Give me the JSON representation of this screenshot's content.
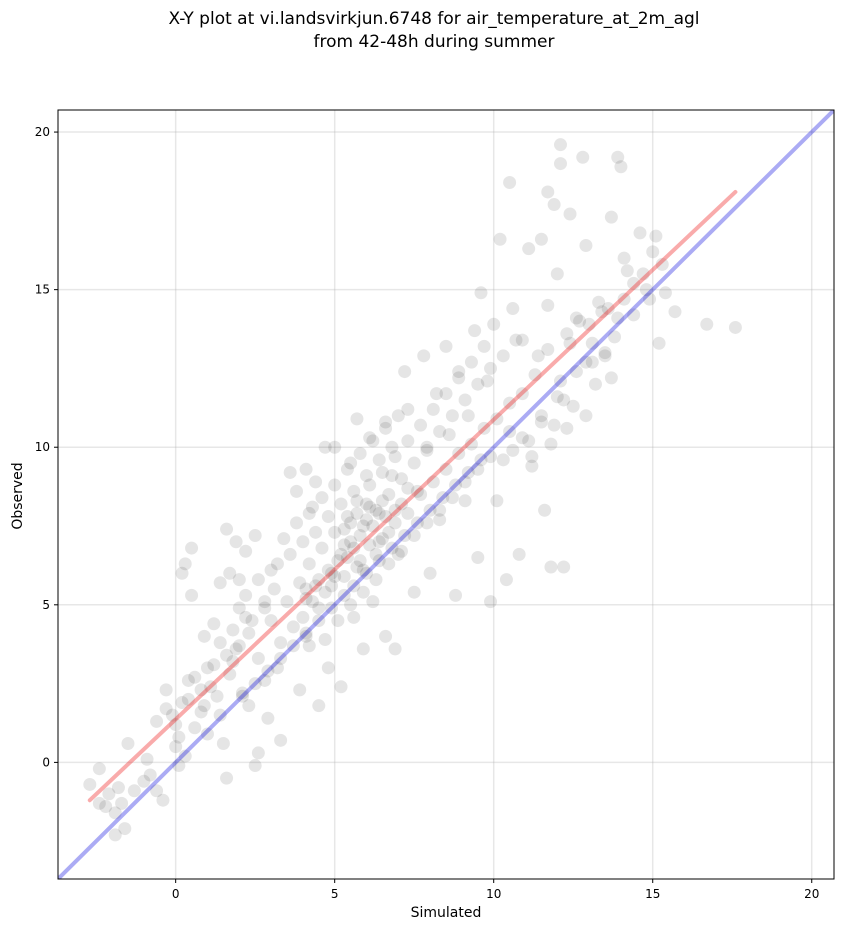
{
  "chart_data": {
    "type": "scatter",
    "title_line1": "X-Y plot at vi.landsvirkjun.6748 for air_temperature_at_2m_agl",
    "title_line2": "from 42-48h during summer",
    "xlabel": "Simulated",
    "ylabel": "Observed",
    "xlim": [
      -3.7,
      20.7
    ],
    "ylim": [
      -3.7,
      20.7
    ],
    "xticks": [
      0,
      5,
      10,
      15,
      20
    ],
    "yticks": [
      0,
      5,
      10,
      15,
      20
    ],
    "grid": true,
    "point_color": "#000000",
    "point_opacity": 0.1,
    "lines": [
      {
        "role": "one-to-one",
        "color": "#0000dd",
        "opacity": 0.33,
        "x": [
          -3.7,
          20.7
        ],
        "y": [
          -3.7,
          20.7
        ]
      },
      {
        "role": "regression",
        "color": "#ee2222",
        "opacity": 0.38,
        "x": [
          -2.7,
          17.6
        ],
        "y": [
          -1.2,
          18.1
        ]
      }
    ],
    "points": [
      [
        -2.7,
        -0.7
      ],
      [
        -2.4,
        -0.2
      ],
      [
        -2.2,
        -1.4
      ],
      [
        -1.9,
        -1.6
      ],
      [
        -1.9,
        -2.3
      ],
      [
        -1.7,
        -1.3
      ],
      [
        -1.6,
        -2.1
      ],
      [
        -1.5,
        0.6
      ],
      [
        -1.3,
        -0.9
      ],
      [
        -1.0,
        -0.6
      ],
      [
        -0.9,
        0.1
      ],
      [
        -0.6,
        -0.9
      ],
      [
        -0.6,
        1.3
      ],
      [
        -0.4,
        -1.2
      ],
      [
        -0.3,
        2.3
      ],
      [
        -0.3,
        1.7
      ],
      [
        -0.1,
        1.5
      ],
      [
        0.1,
        0.8
      ],
      [
        0.1,
        -0.1
      ],
      [
        0.2,
        6.0
      ],
      [
        0.3,
        6.3
      ],
      [
        0.4,
        2.6
      ],
      [
        0.5,
        6.8
      ],
      [
        0.5,
        5.3
      ],
      [
        0.8,
        1.6
      ],
      [
        0.9,
        4.0
      ],
      [
        1.0,
        0.9
      ],
      [
        1.2,
        4.4
      ],
      [
        1.3,
        2.1
      ],
      [
        1.4,
        5.7
      ],
      [
        1.5,
        0.6
      ],
      [
        1.6,
        -0.5
      ],
      [
        1.6,
        7.4
      ],
      [
        1.7,
        6.0
      ],
      [
        1.8,
        3.2
      ],
      [
        1.9,
        7.0
      ],
      [
        2.0,
        5.8
      ],
      [
        2.2,
        6.7
      ],
      [
        2.3,
        1.8
      ],
      [
        2.5,
        -0.1
      ],
      [
        2.5,
        7.2
      ],
      [
        2.6,
        0.3
      ],
      [
        2.8,
        4.9
      ],
      [
        2.9,
        1.4
      ],
      [
        3.1,
        5.5
      ],
      [
        3.2,
        3.0
      ],
      [
        3.3,
        0.7
      ],
      [
        3.6,
        9.2
      ],
      [
        3.8,
        8.6
      ],
      [
        3.9,
        2.3
      ],
      [
        4.1,
        9.3
      ],
      [
        4.1,
        4.0
      ],
      [
        4.3,
        8.1
      ],
      [
        4.4,
        8.9
      ],
      [
        4.5,
        1.8
      ],
      [
        4.7,
        10.0
      ],
      [
        4.8,
        3.0
      ],
      [
        5.0,
        10.0
      ],
      [
        5.0,
        5.9
      ],
      [
        5.2,
        2.4
      ],
      [
        5.3,
        7.4
      ],
      [
        5.5,
        9.5
      ],
      [
        5.6,
        4.6
      ],
      [
        5.7,
        10.9
      ],
      [
        5.8,
        6.4
      ],
      [
        5.9,
        3.6
      ],
      [
        6.0,
        8.2
      ],
      [
        6.1,
        10.3
      ],
      [
        6.2,
        5.1
      ],
      [
        6.4,
        7.9
      ],
      [
        6.6,
        10.8
      ],
      [
        6.6,
        4.0
      ],
      [
        6.8,
        9.1
      ],
      [
        6.9,
        3.6
      ],
      [
        7.0,
        6.6
      ],
      [
        7.2,
        12.4
      ],
      [
        7.3,
        11.2
      ],
      [
        7.5,
        5.4
      ],
      [
        7.6,
        8.6
      ],
      [
        7.8,
        12.9
      ],
      [
        7.9,
        9.9
      ],
      [
        8.0,
        6.0
      ],
      [
        8.2,
        11.7
      ],
      [
        8.3,
        7.7
      ],
      [
        8.5,
        13.2
      ],
      [
        8.6,
        10.4
      ],
      [
        8.8,
        5.3
      ],
      [
        8.9,
        12.4
      ],
      [
        9.1,
        8.3
      ],
      [
        9.2,
        11.0
      ],
      [
        9.4,
        13.7
      ],
      [
        9.5,
        6.5
      ],
      [
        9.6,
        14.9
      ],
      [
        9.8,
        12.1
      ],
      [
        9.9,
        5.1
      ],
      [
        10.0,
        13.9
      ],
      [
        10.1,
        8.3
      ],
      [
        10.2,
        16.6
      ],
      [
        10.4,
        5.8
      ],
      [
        10.5,
        11.4
      ],
      [
        10.6,
        14.4
      ],
      [
        10.8,
        6.6
      ],
      [
        10.9,
        13.4
      ],
      [
        11.1,
        16.3
      ],
      [
        11.2,
        9.7
      ],
      [
        11.4,
        12.9
      ],
      [
        11.5,
        16.6
      ],
      [
        11.6,
        8.0
      ],
      [
        11.7,
        14.5
      ],
      [
        11.7,
        18.1
      ],
      [
        11.8,
        6.2
      ],
      [
        11.9,
        17.7
      ],
      [
        12.0,
        15.5
      ],
      [
        12.2,
        6.2
      ],
      [
        12.2,
        11.5
      ],
      [
        12.4,
        17.4
      ],
      [
        12.6,
        14.1
      ],
      [
        12.8,
        19.2
      ],
      [
        12.9,
        16.4
      ],
      [
        13.1,
        12.7
      ],
      [
        13.4,
        14.3
      ],
      [
        13.7,
        17.3
      ],
      [
        13.9,
        19.2
      ],
      [
        14.0,
        18.9
      ],
      [
        14.1,
        16.0
      ],
      [
        14.4,
        15.2
      ],
      [
        14.6,
        16.8
      ],
      [
        14.9,
        14.7
      ],
      [
        15.2,
        13.3
      ],
      [
        15.4,
        14.9
      ],
      [
        15.7,
        14.3
      ],
      [
        16.7,
        13.9
      ],
      [
        17.6,
        13.8
      ],
      [
        12.1,
        19.6
      ],
      [
        12.1,
        19.0
      ],
      [
        10.5,
        18.4
      ],
      [
        -2.4,
        -1.3
      ],
      [
        -2.1,
        -1.0
      ],
      [
        -1.8,
        -0.8
      ],
      [
        -0.8,
        -0.4
      ],
      [
        0.0,
        0.5
      ],
      [
        0.3,
        0.2
      ],
      [
        0.6,
        1.1
      ],
      [
        0.9,
        1.8
      ],
      [
        1.1,
        2.4
      ],
      [
        1.4,
        1.5
      ],
      [
        1.7,
        2.8
      ],
      [
        1.9,
        3.6
      ],
      [
        2.1,
        2.2
      ],
      [
        2.3,
        4.1
      ],
      [
        2.6,
        3.3
      ],
      [
        2.8,
        2.6
      ],
      [
        3.0,
        4.5
      ],
      [
        3.3,
        3.8
      ],
      [
        3.5,
        5.1
      ],
      [
        3.7,
        4.3
      ],
      [
        3.9,
        5.7
      ],
      [
        4.1,
        5.2
      ],
      [
        4.2,
        6.3
      ],
      [
        4.4,
        5.6
      ],
      [
        4.6,
        6.8
      ],
      [
        4.8,
        6.1
      ],
      [
        5.0,
        7.3
      ],
      [
        5.2,
        6.6
      ],
      [
        5.4,
        7.8
      ],
      [
        5.5,
        7.0
      ],
      [
        5.7,
        8.3
      ],
      [
        5.9,
        7.5
      ],
      [
        6.1,
        8.8
      ],
      [
        6.3,
        8.0
      ],
      [
        6.5,
        9.2
      ],
      [
        6.7,
        8.5
      ],
      [
        6.9,
        9.7
      ],
      [
        7.1,
        9.0
      ],
      [
        7.3,
        10.2
      ],
      [
        7.5,
        9.5
      ],
      [
        7.7,
        10.7
      ],
      [
        7.9,
        10.0
      ],
      [
        8.1,
        11.2
      ],
      [
        8.3,
        10.5
      ],
      [
        8.5,
        11.7
      ],
      [
        8.7,
        11.0
      ],
      [
        8.9,
        12.2
      ],
      [
        9.1,
        11.5
      ],
      [
        9.3,
        12.7
      ],
      [
        9.5,
        12.0
      ],
      [
        9.7,
        13.2
      ],
      [
        9.9,
        12.5
      ],
      [
        10.1,
        10.9
      ],
      [
        10.3,
        12.9
      ],
      [
        10.5,
        10.5
      ],
      [
        10.7,
        13.4
      ],
      [
        10.9,
        11.7
      ],
      [
        11.1,
        10.2
      ],
      [
        11.3,
        12.3
      ],
      [
        11.5,
        11.0
      ],
      [
        11.7,
        13.1
      ],
      [
        11.9,
        10.7
      ],
      [
        12.1,
        12.1
      ],
      [
        12.3,
        13.6
      ],
      [
        12.5,
        11.3
      ],
      [
        12.7,
        14.0
      ],
      [
        12.9,
        12.7
      ],
      [
        13.1,
        13.3
      ],
      [
        13.3,
        14.6
      ],
      [
        13.5,
        13.0
      ],
      [
        13.7,
        12.2
      ],
      [
        13.9,
        14.1
      ],
      [
        4.0,
        4.6
      ],
      [
        4.2,
        3.7
      ],
      [
        4.5,
        4.9
      ],
      [
        4.7,
        3.9
      ],
      [
        4.9,
        5.6
      ],
      [
        5.1,
        4.5
      ],
      [
        5.3,
        5.9
      ],
      [
        5.5,
        5.0
      ],
      [
        5.7,
        6.2
      ],
      [
        5.9,
        5.4
      ],
      [
        6.1,
        6.9
      ],
      [
        6.3,
        5.8
      ],
      [
        6.5,
        7.1
      ],
      [
        6.7,
        6.3
      ],
      [
        6.9,
        7.6
      ],
      [
        7.1,
        6.7
      ],
      [
        7.3,
        7.9
      ],
      [
        7.5,
        7.2
      ],
      [
        7.7,
        8.5
      ],
      [
        7.9,
        7.6
      ],
      [
        8.1,
        8.9
      ],
      [
        8.3,
        8.0
      ],
      [
        8.5,
        9.3
      ],
      [
        8.7,
        8.4
      ],
      [
        8.9,
        9.8
      ],
      [
        9.1,
        8.9
      ],
      [
        9.3,
        10.1
      ],
      [
        9.5,
        9.3
      ],
      [
        9.7,
        10.6
      ],
      [
        9.9,
        9.7
      ],
      [
        3.2,
        6.3
      ],
      [
        3.4,
        7.1
      ],
      [
        3.6,
        6.6
      ],
      [
        3.8,
        7.6
      ],
      [
        4.0,
        7.0
      ],
      [
        4.2,
        7.9
      ],
      [
        4.4,
        7.3
      ],
      [
        4.6,
        8.4
      ],
      [
        4.8,
        7.8
      ],
      [
        5.0,
        8.8
      ],
      [
        5.2,
        8.2
      ],
      [
        5.4,
        9.3
      ],
      [
        5.6,
        8.6
      ],
      [
        5.8,
        9.8
      ],
      [
        6.0,
        9.1
      ],
      [
        6.2,
        10.2
      ],
      [
        6.4,
        9.6
      ],
      [
        6.6,
        10.6
      ],
      [
        6.8,
        10.0
      ],
      [
        7.0,
        11.0
      ],
      [
        2.0,
        4.9
      ],
      [
        2.2,
        5.3
      ],
      [
        2.4,
        4.5
      ],
      [
        2.6,
        5.8
      ],
      [
        2.8,
        5.1
      ],
      [
        3.0,
        6.1
      ],
      [
        1.2,
        3.1
      ],
      [
        1.4,
        3.8
      ],
      [
        1.6,
        3.4
      ],
      [
        1.8,
        4.2
      ],
      [
        2.0,
        3.7
      ],
      [
        2.2,
        4.6
      ],
      [
        0.4,
        2.0
      ],
      [
        0.6,
        2.7
      ],
      [
        0.8,
        2.3
      ],
      [
        1.0,
        3.0
      ],
      [
        0.0,
        1.2
      ],
      [
        0.2,
        1.9
      ],
      [
        5.3,
        5.3
      ],
      [
        5.6,
        5.6
      ],
      [
        6.0,
        6.0
      ],
      [
        6.4,
        6.4
      ],
      [
        6.8,
        6.8
      ],
      [
        7.2,
        7.2
      ],
      [
        7.6,
        7.6
      ],
      [
        8.0,
        8.0
      ],
      [
        8.4,
        8.4
      ],
      [
        8.8,
        8.8
      ],
      [
        9.2,
        9.2
      ],
      [
        9.6,
        9.6
      ],
      [
        4.9,
        4.9
      ],
      [
        4.5,
        4.5
      ],
      [
        4.1,
        4.1
      ],
      [
        3.7,
        3.7
      ],
      [
        3.3,
        3.3
      ],
      [
        2.9,
        2.9
      ],
      [
        2.5,
        2.5
      ],
      [
        2.1,
        2.1
      ],
      [
        6.2,
        7.5
      ],
      [
        6.0,
        7.7
      ],
      [
        5.8,
        7.2
      ],
      [
        6.4,
        7.0
      ],
      [
        6.6,
        7.8
      ],
      [
        5.6,
        6.8
      ],
      [
        5.4,
        6.5
      ],
      [
        6.3,
        6.6
      ],
      [
        5.9,
        6.1
      ],
      [
        5.7,
        7.9
      ],
      [
        6.1,
        8.1
      ],
      [
        5.5,
        7.6
      ],
      [
        6.5,
        8.3
      ],
      [
        6.7,
        7.3
      ],
      [
        5.3,
        6.9
      ],
      [
        6.9,
        8.0
      ],
      [
        7.1,
        8.2
      ],
      [
        7.3,
        8.7
      ],
      [
        4.7,
        5.4
      ],
      [
        4.9,
        6.0
      ],
      [
        5.1,
        6.4
      ],
      [
        4.5,
        5.8
      ],
      [
        4.3,
        5.1
      ],
      [
        4.1,
        5.5
      ],
      [
        10.3,
        9.6
      ],
      [
        10.6,
        9.9
      ],
      [
        10.9,
        10.3
      ],
      [
        11.2,
        9.4
      ],
      [
        11.5,
        10.8
      ],
      [
        11.8,
        10.1
      ],
      [
        12.0,
        11.6
      ],
      [
        12.3,
        10.6
      ],
      [
        12.6,
        12.4
      ],
      [
        12.9,
        11.0
      ],
      [
        13.2,
        12.0
      ],
      [
        13.5,
        12.9
      ],
      [
        13.8,
        13.5
      ],
      [
        14.1,
        14.7
      ],
      [
        14.4,
        14.2
      ],
      [
        14.7,
        15.5
      ],
      [
        15.0,
        16.2
      ],
      [
        15.3,
        15.8
      ],
      [
        15.1,
        16.7
      ],
      [
        14.8,
        15.0
      ],
      [
        14.2,
        15.6
      ],
      [
        13.6,
        14.4
      ],
      [
        13.0,
        13.9
      ],
      [
        12.4,
        13.3
      ]
    ]
  }
}
